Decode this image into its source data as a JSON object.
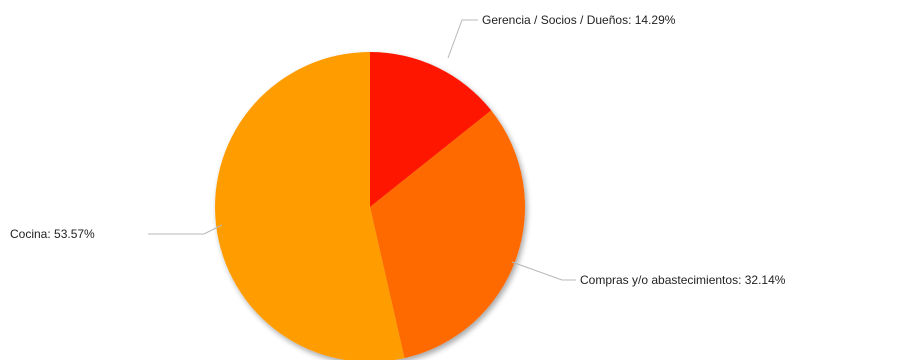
{
  "chart_data": {
    "type": "pie",
    "title": "",
    "slices": [
      {
        "label": "Gerencia / Socios / Dueños: 14.29%",
        "category": "Gerencia / Socios / Dueños",
        "value": 14.29,
        "color": "#ff1300"
      },
      {
        "label": "Compras y/o abastecimientos: 32.14%",
        "category": "Compras y/o abastecimientos",
        "value": 32.14,
        "color": "#ff6a00"
      },
      {
        "label": "Cocina: 53.57%",
        "category": "Cocina",
        "value": 53.57,
        "color": "#ff9c00"
      }
    ],
    "start_angle": "12 o'clock",
    "direction": "clockwise",
    "shadow": true,
    "legend": "none",
    "labels": "outside with leader lines"
  }
}
